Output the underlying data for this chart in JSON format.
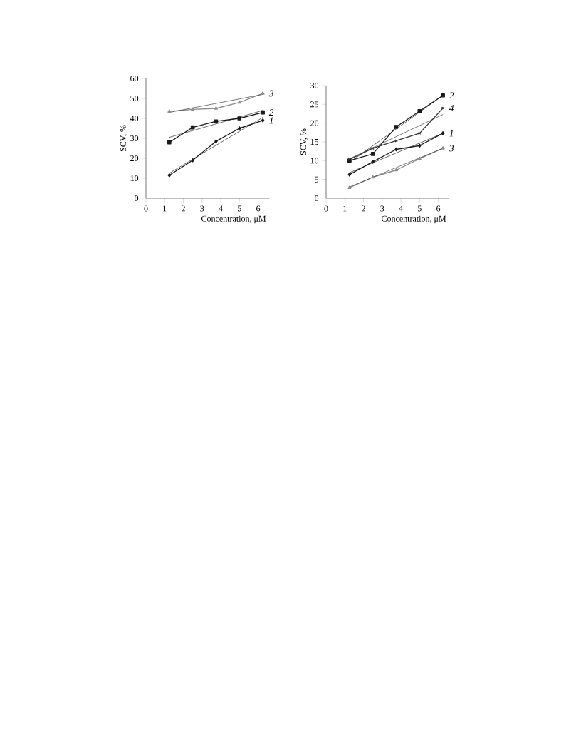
{
  "chart_data": [
    {
      "type": "line",
      "xlabel": "Concentration, μM",
      "ylabel": "SCV, %",
      "xlim": [
        0,
        6.6
      ],
      "ylim": [
        0,
        60
      ],
      "xticks": [
        0,
        1,
        2,
        3,
        4,
        5,
        6
      ],
      "yticks": [
        0,
        10,
        20,
        30,
        40,
        50,
        60
      ],
      "series": [
        {
          "name": "1",
          "color": "#1a1a1a",
          "marker": "diamond",
          "x": [
            1.25,
            2.5,
            3.75,
            5,
            6.25
          ],
          "values": [
            11.5,
            19,
            28.5,
            35,
            39
          ]
        },
        {
          "color": "#1a1a1a",
          "marker": "none",
          "x": [
            1.25,
            6.25
          ],
          "values": [
            12.5,
            40.5
          ]
        },
        {
          "name": "2",
          "color": "#1a1a1a",
          "marker": "square",
          "x": [
            1.25,
            2.5,
            3.75,
            5,
            6.25
          ],
          "values": [
            28,
            35.5,
            38.5,
            40,
            43
          ]
        },
        {
          "color": "#1a1a1a",
          "marker": "none",
          "x": [
            1.25,
            6.25
          ],
          "values": [
            30.5,
            44
          ]
        },
        {
          "name": "3",
          "color": "#8c8c8c",
          "marker": "triangle",
          "x": [
            1.25,
            2.5,
            3.75,
            5,
            6.25
          ],
          "values": [
            43.5,
            44.5,
            45,
            48,
            52.5
          ]
        },
        {
          "color": "#333333",
          "marker": "none",
          "x": [
            1.25,
            6.25
          ],
          "values": [
            43,
            52
          ]
        }
      ]
    },
    {
      "type": "line",
      "xlabel": "Concentration, μM",
      "ylabel": "SCV, %",
      "xlim": [
        0,
        6.6
      ],
      "ylim": [
        0,
        30
      ],
      "xticks": [
        0,
        1,
        2,
        3,
        4,
        5,
        6
      ],
      "yticks": [
        0,
        5,
        10,
        15,
        20,
        25,
        30
      ],
      "series": [
        {
          "name": "1",
          "color": "#1a1a1a",
          "marker": "diamond",
          "x": [
            1.25,
            2.5,
            3.75,
            5,
            6.25
          ],
          "values": [
            6.3,
            9.7,
            13,
            14,
            17.3
          ]
        },
        {
          "color": "#1a1a1a",
          "marker": "none",
          "x": [
            1.25,
            6.25
          ],
          "values": [
            6.8,
            17.3
          ]
        },
        {
          "name": "2",
          "color": "#1a1a1a",
          "marker": "square",
          "x": [
            1.25,
            2.5,
            3.75,
            5,
            6.25
          ],
          "values": [
            10,
            11.8,
            19,
            23.2,
            27.4
          ]
        },
        {
          "color": "#1a1a1a",
          "marker": "none",
          "x": [
            1.25,
            6.25
          ],
          "values": [
            9.5,
            27.4
          ]
        },
        {
          "name": "3",
          "color": "#8c8c8c",
          "marker": "triangle",
          "x": [
            1.25,
            2.5,
            3.75,
            5,
            6.25
          ],
          "values": [
            2.8,
            5.6,
            7.5,
            10.5,
            13.3
          ]
        },
        {
          "color": "#333333",
          "marker": "none",
          "x": [
            1.25,
            6.25
          ],
          "values": [
            3,
            13.3
          ]
        },
        {
          "name": "4",
          "color": "#333333",
          "marker": "cross",
          "x": [
            1.25,
            2.5,
            3.75,
            5,
            6.25
          ],
          "values": [
            10.3,
            13.3,
            15.3,
            17.3,
            24
          ]
        },
        {
          "color": "#333333",
          "marker": "none",
          "x": [
            1.25,
            6.25
          ],
          "values": [
            10.5,
            22.3
          ]
        }
      ]
    }
  ]
}
